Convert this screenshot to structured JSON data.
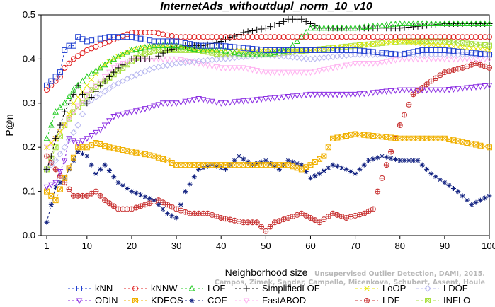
{
  "chart_data": {
    "type": "line",
    "title": "InternetAds_withoutdupl_norm_10_v10",
    "xlabel": "Neighborhood size",
    "ylabel": "P@n",
    "xlim": [
      1,
      100
    ],
    "ylim": [
      0,
      0.5
    ],
    "xticks": [
      1,
      10,
      20,
      30,
      40,
      50,
      60,
      70,
      80,
      90,
      100
    ],
    "yticks": [
      0.0,
      0.1,
      0.2,
      0.3,
      0.4,
      0.5
    ],
    "grid": false,
    "legend_position": "bottom",
    "credit": [
      "Unsupervised Outlier Detection, DAMI, 2015.",
      "Campos, Zimek, Sander, Campello, Micenkova, Schubert, Assent, Houle"
    ],
    "series": [
      {
        "name": "kNN",
        "color": "#1f3fd0",
        "marker": "square",
        "knots": [
          [
            1,
            0.34
          ],
          [
            2,
            0.35
          ],
          [
            3,
            0.36
          ],
          [
            4,
            0.37
          ],
          [
            5,
            0.42
          ],
          [
            6,
            0.43
          ],
          [
            7,
            0.43
          ],
          [
            8,
            0.45
          ],
          [
            10,
            0.44
          ],
          [
            15,
            0.45
          ],
          [
            20,
            0.45
          ],
          [
            25,
            0.44
          ],
          [
            30,
            0.44
          ],
          [
            35,
            0.43
          ],
          [
            40,
            0.43
          ],
          [
            50,
            0.42
          ],
          [
            60,
            0.42
          ],
          [
            70,
            0.42
          ],
          [
            80,
            0.41
          ],
          [
            85,
            0.42
          ],
          [
            90,
            0.42
          ],
          [
            100,
            0.41
          ]
        ]
      },
      {
        "name": "kNNW",
        "color": "#e02020",
        "marker": "circle",
        "knots": [
          [
            1,
            0.33
          ],
          [
            2,
            0.34
          ],
          [
            3,
            0.35
          ],
          [
            4,
            0.36
          ],
          [
            5,
            0.38
          ],
          [
            6,
            0.39
          ],
          [
            7,
            0.4
          ],
          [
            10,
            0.42
          ],
          [
            15,
            0.44
          ],
          [
            20,
            0.46
          ],
          [
            25,
            0.46
          ],
          [
            30,
            0.45
          ],
          [
            35,
            0.45
          ],
          [
            40,
            0.45
          ],
          [
            50,
            0.45
          ],
          [
            60,
            0.45
          ],
          [
            70,
            0.45
          ],
          [
            80,
            0.45
          ],
          [
            90,
            0.45
          ],
          [
            100,
            0.45
          ]
        ]
      },
      {
        "name": "LOF",
        "color": "#22cc22",
        "marker": "triangle-up",
        "knots": [
          [
            1,
            0.22
          ],
          [
            2,
            0.25
          ],
          [
            3,
            0.28
          ],
          [
            5,
            0.3
          ],
          [
            7,
            0.33
          ],
          [
            10,
            0.36
          ],
          [
            13,
            0.38
          ],
          [
            16,
            0.4
          ],
          [
            20,
            0.42
          ],
          [
            25,
            0.43
          ],
          [
            30,
            0.43
          ],
          [
            35,
            0.42
          ],
          [
            40,
            0.42
          ],
          [
            45,
            0.41
          ],
          [
            50,
            0.41
          ],
          [
            55,
            0.42
          ],
          [
            60,
            0.47
          ],
          [
            65,
            0.47
          ],
          [
            70,
            0.47
          ],
          [
            80,
            0.48
          ],
          [
            90,
            0.48
          ],
          [
            100,
            0.48
          ]
        ]
      },
      {
        "name": "SimplifiedLOF",
        "color": "#000000",
        "marker": "plus",
        "knots": [
          [
            1,
            0.15
          ],
          [
            2,
            0.18
          ],
          [
            3,
            0.22
          ],
          [
            5,
            0.28
          ],
          [
            7,
            0.32
          ],
          [
            8,
            0.34
          ],
          [
            10,
            0.3
          ],
          [
            13,
            0.34
          ],
          [
            17,
            0.38
          ],
          [
            20,
            0.4
          ],
          [
            25,
            0.4
          ],
          [
            28,
            0.42
          ],
          [
            32,
            0.43
          ],
          [
            36,
            0.43
          ],
          [
            40,
            0.44
          ],
          [
            45,
            0.46
          ],
          [
            50,
            0.47
          ],
          [
            53,
            0.48
          ],
          [
            55,
            0.49
          ],
          [
            58,
            0.49
          ],
          [
            62,
            0.47
          ],
          [
            70,
            0.47
          ],
          [
            80,
            0.47
          ],
          [
            90,
            0.48
          ],
          [
            100,
            0.48
          ]
        ]
      },
      {
        "name": "LoOP",
        "color": "#e8e800",
        "marker": "x",
        "knots": [
          [
            1,
            0.2
          ],
          [
            3,
            0.22
          ],
          [
            5,
            0.25
          ],
          [
            7,
            0.3
          ],
          [
            10,
            0.34
          ],
          [
            13,
            0.38
          ],
          [
            16,
            0.4
          ],
          [
            20,
            0.42
          ],
          [
            25,
            0.43
          ],
          [
            30,
            0.43
          ],
          [
            35,
            0.42
          ],
          [
            40,
            0.42
          ],
          [
            50,
            0.42
          ],
          [
            60,
            0.42
          ],
          [
            70,
            0.43
          ],
          [
            80,
            0.44
          ],
          [
            90,
            0.43
          ],
          [
            100,
            0.42
          ]
        ]
      },
      {
        "name": "LDOF",
        "color": "#b8b8f0",
        "marker": "diamond",
        "knots": [
          [
            1,
            0.15
          ],
          [
            3,
            0.17
          ],
          [
            5,
            0.2
          ],
          [
            8,
            0.25
          ],
          [
            10,
            0.3
          ],
          [
            13,
            0.32
          ],
          [
            16,
            0.34
          ],
          [
            20,
            0.36
          ],
          [
            25,
            0.38
          ],
          [
            30,
            0.39
          ],
          [
            40,
            0.4
          ],
          [
            50,
            0.41
          ],
          [
            60,
            0.4
          ],
          [
            70,
            0.41
          ],
          [
            80,
            0.41
          ],
          [
            90,
            0.41
          ],
          [
            100,
            0.41
          ]
        ]
      },
      {
        "name": "ODIN",
        "color": "#8a2be2",
        "marker": "triangle-down",
        "knots": [
          [
            1,
            0.11
          ],
          [
            3,
            0.12
          ],
          [
            5,
            0.17
          ],
          [
            6,
            0.22
          ],
          [
            8,
            0.21
          ],
          [
            10,
            0.22
          ],
          [
            13,
            0.24
          ],
          [
            16,
            0.27
          ],
          [
            20,
            0.28
          ],
          [
            24,
            0.29
          ],
          [
            27,
            0.3
          ],
          [
            30,
            0.3
          ],
          [
            35,
            0.31
          ],
          [
            40,
            0.3
          ],
          [
            50,
            0.31
          ],
          [
            60,
            0.32
          ],
          [
            70,
            0.32
          ],
          [
            80,
            0.33
          ],
          [
            90,
            0.33
          ],
          [
            100,
            0.34
          ]
        ]
      },
      {
        "name": "KDEOS",
        "color": "#f0b000",
        "marker": "square-x",
        "knots": [
          [
            1,
            0.1
          ],
          [
            3,
            0.08
          ],
          [
            5,
            0.13
          ],
          [
            8,
            0.2
          ],
          [
            10,
            0.2
          ],
          [
            12,
            0.21
          ],
          [
            15,
            0.2
          ],
          [
            20,
            0.19
          ],
          [
            25,
            0.18
          ],
          [
            28,
            0.17
          ],
          [
            30,
            0.16
          ],
          [
            40,
            0.16
          ],
          [
            50,
            0.16
          ],
          [
            55,
            0.16
          ],
          [
            58,
            0.15
          ],
          [
            60,
            0.16
          ],
          [
            63,
            0.18
          ],
          [
            65,
            0.22
          ],
          [
            70,
            0.23
          ],
          [
            80,
            0.22
          ],
          [
            90,
            0.22
          ],
          [
            95,
            0.21
          ],
          [
            100,
            0.2
          ]
        ]
      },
      {
        "name": "COF",
        "color": "#102080",
        "marker": "star",
        "knots": [
          [
            1,
            0.03
          ],
          [
            3,
            0.11
          ],
          [
            5,
            0.13
          ],
          [
            8,
            0.19
          ],
          [
            10,
            0.18
          ],
          [
            12,
            0.14
          ],
          [
            14,
            0.16
          ],
          [
            17,
            0.12
          ],
          [
            20,
            0.1
          ],
          [
            25,
            0.08
          ],
          [
            28,
            0.05
          ],
          [
            30,
            0.04
          ],
          [
            32,
            0.1
          ],
          [
            35,
            0.15
          ],
          [
            38,
            0.16
          ],
          [
            41,
            0.15
          ],
          [
            44,
            0.18
          ],
          [
            47,
            0.16
          ],
          [
            50,
            0.17
          ],
          [
            53,
            0.15
          ],
          [
            55,
            0.17
          ],
          [
            58,
            0.16
          ],
          [
            60,
            0.13
          ],
          [
            62,
            0.14
          ],
          [
            65,
            0.16
          ],
          [
            68,
            0.15
          ],
          [
            70,
            0.14
          ],
          [
            73,
            0.17
          ],
          [
            76,
            0.18
          ],
          [
            80,
            0.17
          ],
          [
            84,
            0.17
          ],
          [
            87,
            0.14
          ],
          [
            90,
            0.12
          ],
          [
            93,
            0.1
          ],
          [
            96,
            0.07
          ],
          [
            100,
            0.09
          ]
        ]
      },
      {
        "name": "FastABOD",
        "color": "#ffb0f0",
        "marker": "triangle-down",
        "knots": [
          [
            1,
            0.2
          ],
          [
            3,
            0.22
          ],
          [
            5,
            0.25
          ],
          [
            7,
            0.28
          ],
          [
            10,
            0.32
          ],
          [
            13,
            0.35
          ],
          [
            16,
            0.38
          ],
          [
            20,
            0.4
          ],
          [
            25,
            0.4
          ],
          [
            30,
            0.4
          ],
          [
            35,
            0.39
          ],
          [
            40,
            0.38
          ],
          [
            45,
            0.38
          ],
          [
            50,
            0.37
          ],
          [
            55,
            0.37
          ],
          [
            60,
            0.37
          ],
          [
            65,
            0.38
          ],
          [
            70,
            0.39
          ],
          [
            75,
            0.39
          ],
          [
            80,
            0.4
          ],
          [
            90,
            0.4
          ],
          [
            100,
            0.4
          ]
        ]
      },
      {
        "name": "LDF",
        "color": "#c83232",
        "marker": "circle-plus",
        "knots": [
          [
            1,
            0.18
          ],
          [
            3,
            0.15
          ],
          [
            5,
            0.12
          ],
          [
            7,
            0.09
          ],
          [
            10,
            0.09
          ],
          [
            12,
            0.1
          ],
          [
            14,
            0.08
          ],
          [
            17,
            0.06
          ],
          [
            20,
            0.06
          ],
          [
            23,
            0.07
          ],
          [
            26,
            0.08
          ],
          [
            30,
            0.06
          ],
          [
            33,
            0.05
          ],
          [
            37,
            0.05
          ],
          [
            40,
            0.04
          ],
          [
            45,
            0.03
          ],
          [
            48,
            0.03
          ],
          [
            50,
            0.01
          ],
          [
            52,
            0.03
          ],
          [
            55,
            0.04
          ],
          [
            58,
            0.05
          ],
          [
            62,
            0.03
          ],
          [
            65,
            0.05
          ],
          [
            68,
            0.04
          ],
          [
            72,
            0.05
          ],
          [
            74,
            0.06
          ],
          [
            75,
            0.1
          ],
          [
            77,
            0.16
          ],
          [
            80,
            0.25
          ],
          [
            83,
            0.32
          ],
          [
            87,
            0.35
          ],
          [
            90,
            0.37
          ],
          [
            94,
            0.38
          ],
          [
            97,
            0.39
          ],
          [
            100,
            0.38
          ]
        ]
      },
      {
        "name": "INFLO",
        "color": "#a8e040",
        "marker": "square-x",
        "knots": [
          [
            1,
            0.15
          ],
          [
            3,
            0.2
          ],
          [
            5,
            0.25
          ],
          [
            7,
            0.28
          ],
          [
            9,
            0.3
          ],
          [
            11,
            0.33
          ],
          [
            14,
            0.35
          ],
          [
            18,
            0.38
          ],
          [
            22,
            0.41
          ],
          [
            26,
            0.42
          ],
          [
            30,
            0.42
          ],
          [
            35,
            0.42
          ],
          [
            40,
            0.41
          ],
          [
            50,
            0.41
          ],
          [
            60,
            0.42
          ],
          [
            70,
            0.43
          ],
          [
            80,
            0.44
          ],
          [
            90,
            0.44
          ],
          [
            100,
            0.43
          ]
        ]
      }
    ]
  }
}
